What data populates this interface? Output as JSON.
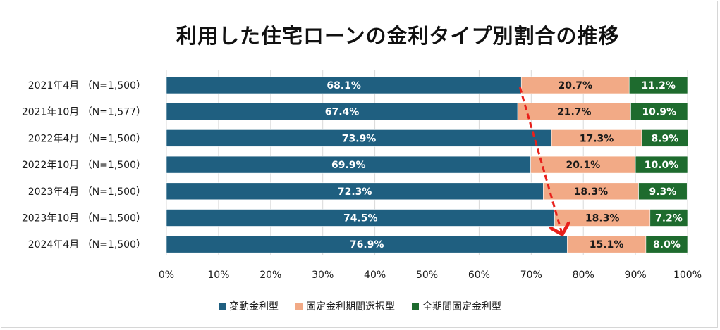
{
  "chart_data": {
    "type": "bar",
    "orientation": "horizontal",
    "stacked": true,
    "title": "利用した住宅ローンの金利タイプ別割合の推移",
    "categories": [
      "2021年4月 （N=1,500）",
      "2021年10月 （N=1,577）",
      "2022年4月 （N=1,500）",
      "2022年10月 （N=1,500）",
      "2023年4月 （N=1,500）",
      "2023年10月 （N=1,500）",
      "2024年4月 （N=1,500）"
    ],
    "series": [
      {
        "name": "変動金利型",
        "color": "#1f5f80",
        "label_color": "#ffffff",
        "values": [
          68.1,
          67.4,
          73.9,
          69.9,
          72.3,
          74.5,
          76.9
        ],
        "labels": [
          "68.1%",
          "67.4%",
          "73.9%",
          "69.9%",
          "72.3%",
          "74.5%",
          "76.9%"
        ]
      },
      {
        "name": "固定金利期間選択型",
        "color": "#f2aa86",
        "label_color": "#1a1a1a",
        "values": [
          20.7,
          21.7,
          17.3,
          20.1,
          18.3,
          18.3,
          15.1
        ],
        "labels": [
          "20.7%",
          "21.7%",
          "17.3%",
          "20.1%",
          "18.3%",
          "18.3%",
          "15.1%"
        ]
      },
      {
        "name": "全期間固定金利型",
        "color": "#1e6b2e",
        "label_color": "#ffffff",
        "values": [
          11.2,
          10.9,
          8.9,
          10.0,
          9.3,
          7.2,
          8.0
        ],
        "labels": [
          "11.2%",
          "10.9%",
          "8.9%",
          "10.0%",
          "9.3%",
          "7.2%",
          "8.0%"
        ]
      }
    ],
    "xlim": [
      0,
      100
    ],
    "x_ticks": [
      "0%",
      "10%",
      "20%",
      "30%",
      "40%",
      "50%",
      "60%",
      "70%",
      "80%",
      "90%",
      "100%"
    ],
    "grid": true,
    "legend_position": "bottom",
    "annotation": {
      "type": "dashed-arrow",
      "color": "#e8201b",
      "from": {
        "category_index": 0,
        "value": 68.1
      },
      "to": {
        "category_index": 6,
        "value": 76.9
      }
    }
  }
}
